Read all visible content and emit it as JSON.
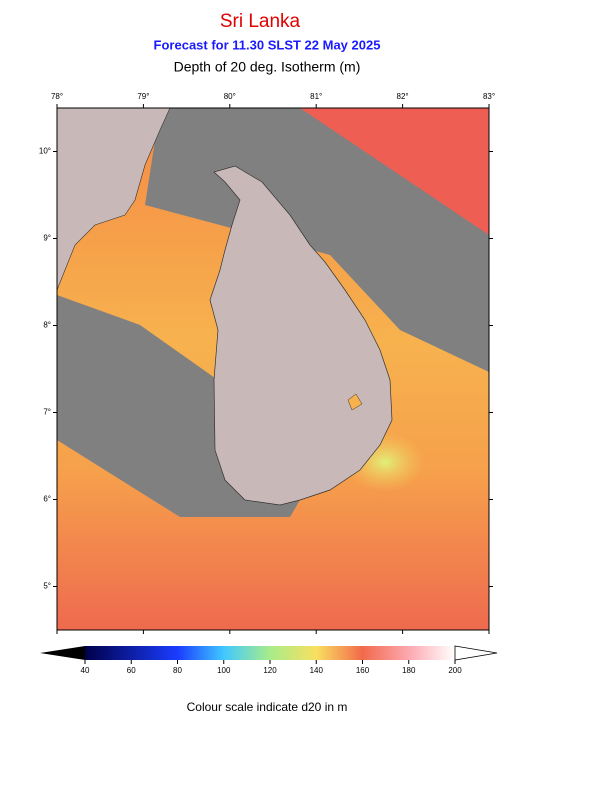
{
  "header": {
    "title": "Sri Lanka",
    "subtitle": "Forecast for  11.30 SLST 22 May 2025",
    "variable": "Depth of 20 deg. Isotherm (m)"
  },
  "map": {
    "xlim": [
      78,
      83
    ],
    "ylim": [
      4.5,
      10.5
    ],
    "xticks": [
      {
        "value": 78,
        "label": "78°"
      },
      {
        "value": 79,
        "label": "79°"
      },
      {
        "value": 80,
        "label": "80°"
      },
      {
        "value": 81,
        "label": "81°"
      },
      {
        "value": 82,
        "label": "82°"
      },
      {
        "value": 83,
        "label": "83°"
      }
    ],
    "yticks": [
      {
        "value": 5,
        "label": "5°"
      },
      {
        "value": 6,
        "label": "6°"
      },
      {
        "value": 7,
        "label": "7°"
      },
      {
        "value": 8,
        "label": "8°"
      },
      {
        "value": 9,
        "label": "9°"
      },
      {
        "value": 10,
        "label": "10°"
      }
    ]
  },
  "colorbar": {
    "lim": [
      40,
      200
    ],
    "ticks": [
      40,
      60,
      80,
      100,
      120,
      140,
      160,
      180,
      200
    ]
  },
  "caption": "Colour scale indicate d20 in m"
}
